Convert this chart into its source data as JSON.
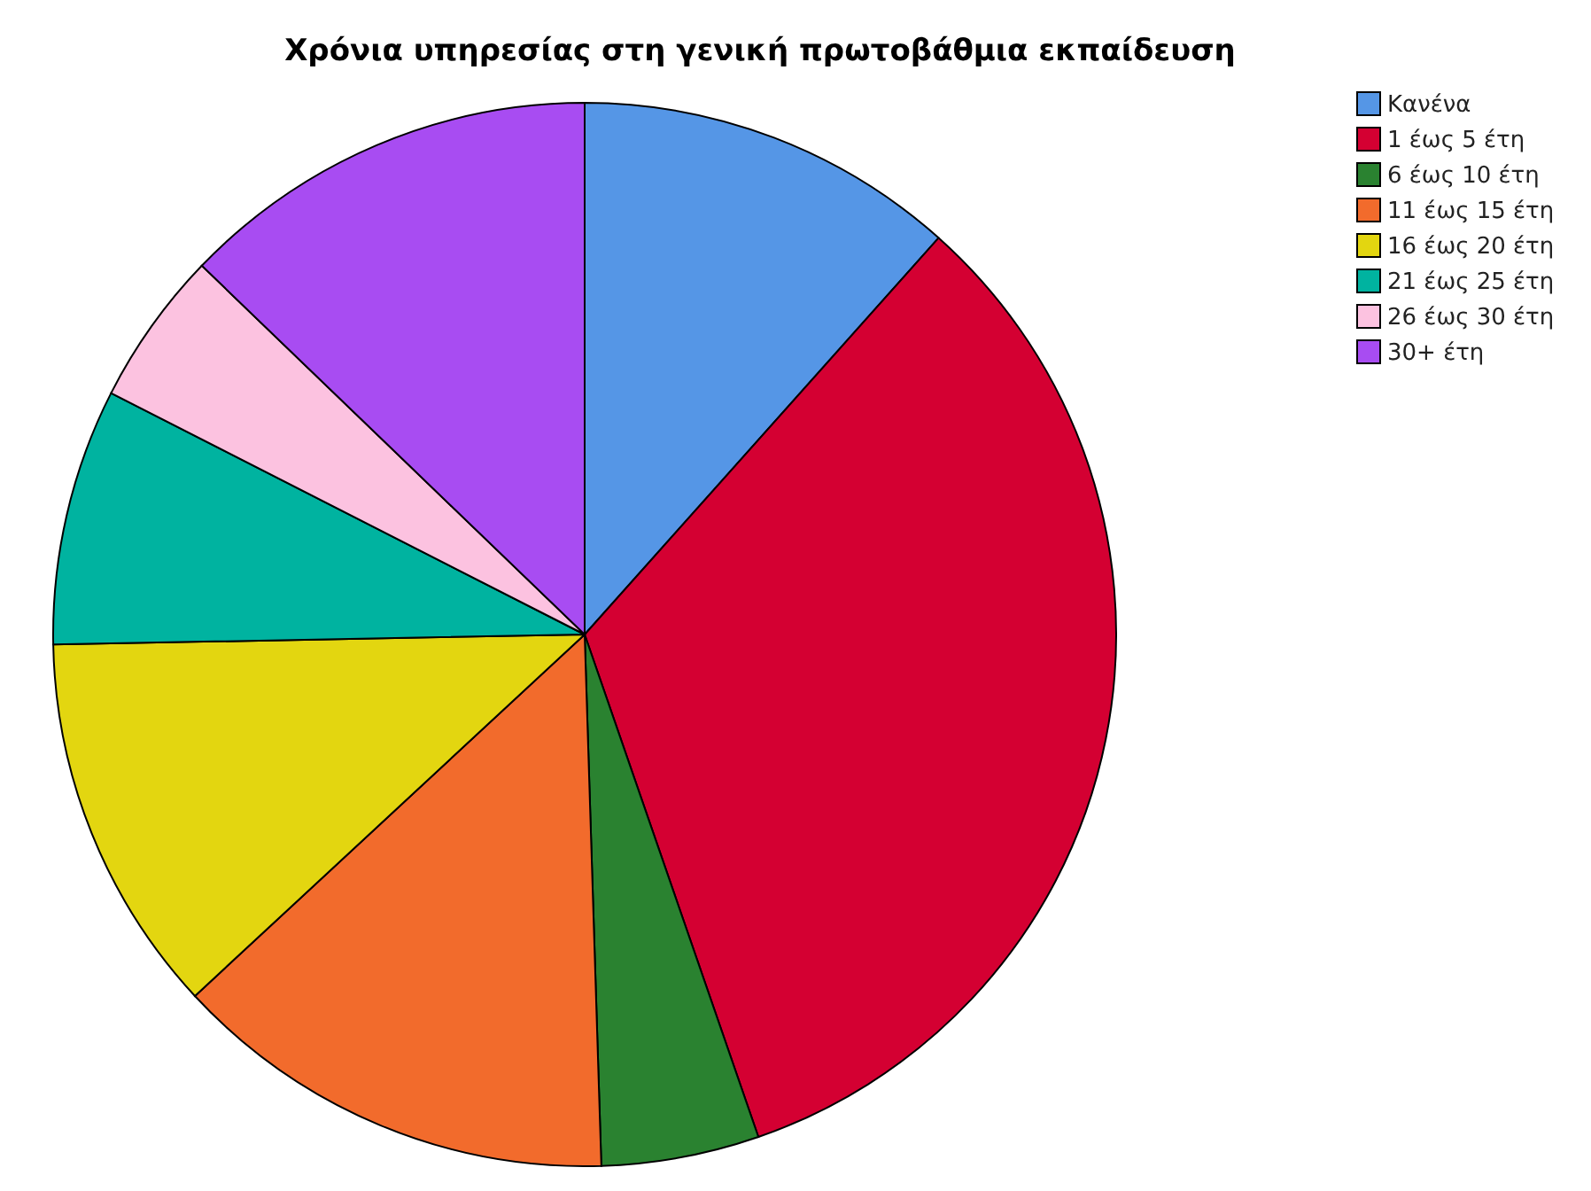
{
  "chart_data": {
    "type": "pie",
    "title": "Χρόνια υπηρεσίας στη γενική πρωτοβάθμια εκπαίδευση",
    "categories": [
      "Κανένα",
      "1 έως 5 έτη",
      "6 έως 10 έτη",
      "11 έως 15 έτη",
      "16 έως 20 έτη",
      "21 έως 25 έτη",
      "26 έως 30 έτη",
      "30+ έτη"
    ],
    "values": [
      11.6,
      33.1,
      4.8,
      13.6,
      11.6,
      7.8,
      4.7,
      12.8
    ],
    "colors": [
      "#5596e6",
      "#d40032",
      "#2a8230",
      "#f26b2c",
      "#e3d610",
      "#00b3a0",
      "#fcc2e0",
      "#a84cf2"
    ],
    "legend": "top right"
  }
}
